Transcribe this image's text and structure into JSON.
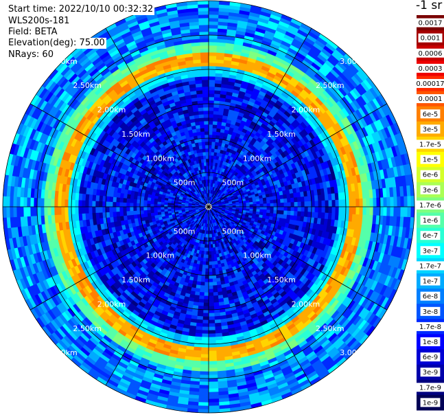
{
  "info": {
    "start_time": "Start time: 2022/10/10 00:32:32",
    "station": "WLS200s-181",
    "field": "Field: BETA",
    "elevation": "Elevation(deg): 75.00",
    "nrays": "NRays: 60"
  },
  "colorbar": {
    "title": "-1 sr",
    "labels": [
      "0.0017",
      "0.001",
      "0.0006",
      "0.0003",
      "0.00017",
      "0.0001",
      "6e-5",
      "3e-5",
      "1.7e-5",
      "1e-5",
      "6e-6",
      "3e-6",
      "1.7e-6",
      "1e-6",
      "6e-7",
      "3e-7",
      "1.7e-7",
      "1e-7",
      "6e-8",
      "3e-8",
      "1.7e-8",
      "1e-8",
      "6e-9",
      "3e-9",
      "1.7e-9",
      "1e-9"
    ],
    "colors": [
      "#7a0000",
      "#a40000",
      "#c80000",
      "#ee0000",
      "#ff2a00",
      "#ff5500",
      "#ff7f00",
      "#ffaa00",
      "#ffd400",
      "#ffff00",
      "#d4ff2a",
      "#aaff55",
      "#7fff7f",
      "#55ffaa",
      "#2affd4",
      "#00ffff",
      "#00d4ff",
      "#00aaff",
      "#007fff",
      "#0055ff",
      "#002aff",
      "#0000ff",
      "#0000d4",
      "#0000aa",
      "#00007f",
      "#000055"
    ]
  },
  "chart_data": {
    "type": "heatmap",
    "projection": "polar (PPI)",
    "field": "BETA",
    "elevation_deg": 75.0,
    "n_rays": 60,
    "range_unit": "m",
    "range_max": 3000,
    "range_ring_labels": [
      "500m",
      "1.00km",
      "1.50km",
      "2.00km",
      "2.50km",
      "3.00km"
    ],
    "range_rings": [
      500,
      1000,
      1500,
      2000,
      2500,
      3000
    ],
    "scale": "log",
    "value_range": [
      1e-09,
      0.0017
    ],
    "features": [
      {
        "description": "background near surface",
        "range": [
          0,
          1900
        ],
        "value": 1e-08
      },
      {
        "description": "enhanced layer",
        "range": [
          1900,
          2050
        ],
        "value": 2e-07
      },
      {
        "description": "peak layer",
        "range": [
          2050,
          2250
        ],
        "value": 3e-05
      },
      {
        "description": "enhanced layer",
        "range": [
          2250,
          2400
        ],
        "value": 1e-06
      },
      {
        "description": "background aloft",
        "range": [
          2400,
          3000
        ],
        "value": 6e-08
      }
    ]
  }
}
